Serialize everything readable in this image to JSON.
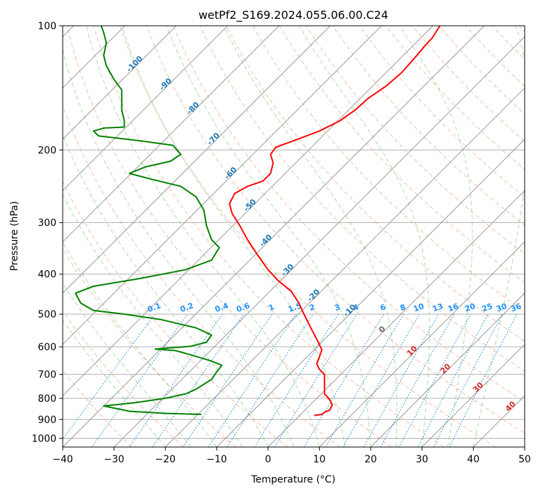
{
  "chart_data": {
    "type": "line",
    "title": "wetPf2_S169.2024.055.06.00.C24",
    "xlabel": "Temperature (°C)",
    "ylabel": "Pressure (hPa)",
    "xlim": [
      -40,
      50
    ],
    "ylim": [
      1050,
      100
    ],
    "y_scale": "log",
    "grid": true,
    "x_ticks": [
      -40,
      -30,
      -20,
      -10,
      0,
      10,
      20,
      30,
      40,
      50
    ],
    "y_ticks": [
      100,
      200,
      300,
      400,
      500,
      600,
      700,
      800,
      900,
      1000
    ],
    "colors": {
      "temperature": "#ff0000",
      "dewpoint": "#008000",
      "dry_adiabat": "#f4a582",
      "moist_adiabat": "#66bb66",
      "mixing_ratio": "#1e88e5",
      "isotherm": "#999999",
      "mixing_label": "#1e90ff",
      "isotherm_label_blue": "#1f77b4",
      "isotherm_label_red": "#d62728",
      "isotherm_label_zero": "#666666"
    },
    "series": [
      {
        "key": "temperature",
        "points": [
          [
            9.0,
            880
          ],
          [
            10.5,
            875
          ],
          [
            11.0,
            865
          ],
          [
            12.0,
            855
          ],
          [
            12.5,
            830
          ],
          [
            12.0,
            805
          ],
          [
            11.0,
            780
          ],
          [
            11.0,
            740
          ],
          [
            11.0,
            700
          ],
          [
            10.0,
            680
          ],
          [
            9.5,
            660
          ],
          [
            10.0,
            635
          ],
          [
            10.5,
            610
          ],
          [
            9.5,
            575
          ],
          [
            8.5,
            545
          ],
          [
            7.0,
            500
          ],
          [
            6.0,
            470
          ],
          [
            4.5,
            440
          ],
          [
            2.0,
            415
          ],
          [
            0.0,
            390
          ],
          [
            -2.0,
            360
          ],
          [
            -4.0,
            330
          ],
          [
            -5.5,
            305
          ],
          [
            -7.0,
            285
          ],
          [
            -7.5,
            270
          ],
          [
            -6.5,
            255
          ],
          [
            -4.0,
            245
          ],
          [
            -1.0,
            238
          ],
          [
            0.5,
            228
          ],
          [
            1.0,
            215
          ],
          [
            0.5,
            205
          ],
          [
            1.5,
            197
          ],
          [
            5.0,
            190
          ],
          [
            10.0,
            180
          ],
          [
            14.0,
            170
          ],
          [
            17.0,
            160
          ],
          [
            19.5,
            150
          ],
          [
            23.0,
            140
          ],
          [
            26.0,
            130
          ],
          [
            28.5,
            120
          ],
          [
            30.5,
            112
          ],
          [
            32.0,
            107
          ],
          [
            33.5,
            100
          ]
        ],
        "skewed": true
      },
      {
        "key": "dewpoint",
        "points": [
          [
            -13.0,
            875
          ],
          [
            -20.0,
            870
          ],
          [
            -27.0,
            860
          ],
          [
            -32.0,
            835
          ],
          [
            -26.0,
            820
          ],
          [
            -20.0,
            800
          ],
          [
            -16.0,
            780
          ],
          [
            -14.0,
            760
          ],
          [
            -11.0,
            720
          ],
          [
            -10.0,
            690
          ],
          [
            -9.0,
            665
          ],
          [
            -11.0,
            650
          ],
          [
            -15.0,
            628
          ],
          [
            -18.0,
            613
          ],
          [
            -22.0,
            608
          ],
          [
            -15.0,
            598
          ],
          [
            -12.0,
            585
          ],
          [
            -11.0,
            562
          ],
          [
            -14.0,
            540
          ],
          [
            -21.0,
            515
          ],
          [
            -28.0,
            500
          ],
          [
            -34.0,
            490
          ],
          [
            -36.5,
            470
          ],
          [
            -37.5,
            445
          ],
          [
            -34.0,
            428
          ],
          [
            -25.0,
            410
          ],
          [
            -16.0,
            390
          ],
          [
            -11.0,
            370
          ],
          [
            -9.5,
            345
          ],
          [
            -11.0,
            330
          ],
          [
            -12.0,
            305
          ],
          [
            -12.5,
            280
          ],
          [
            -14.0,
            260
          ],
          [
            -17.0,
            245
          ],
          [
            -23.0,
            235
          ],
          [
            -27.0,
            228
          ],
          [
            -24.0,
            220
          ],
          [
            -19.0,
            213
          ],
          [
            -17.0,
            205
          ],
          [
            -18.5,
            195
          ],
          [
            -25.0,
            190
          ],
          [
            -33.0,
            185
          ],
          [
            -34.0,
            180
          ],
          [
            -32.0,
            177
          ],
          [
            -28.0,
            176
          ],
          [
            -28.0,
            170
          ],
          [
            -28.5,
            160
          ],
          [
            -28.5,
            150
          ],
          [
            -28.5,
            143
          ],
          [
            -30.0,
            135
          ],
          [
            -31.5,
            125
          ],
          [
            -32.0,
            118
          ],
          [
            -31.5,
            110
          ],
          [
            -32.0,
            104
          ],
          [
            -32.5,
            100
          ]
        ],
        "skewed": true
      }
    ],
    "isotherm_labels": {
      "blue": [
        [
          "-100",
          -100,
          125
        ],
        [
          "-90",
          -90,
          140
        ],
        [
          "-80",
          -80,
          160
        ],
        [
          "-70",
          -70,
          190
        ],
        [
          "-60",
          -60,
          230
        ],
        [
          "-50",
          -50,
          275
        ],
        [
          "-40",
          -40,
          335
        ],
        [
          "-30",
          -30,
          395
        ],
        [
          "-20",
          -20,
          455
        ],
        [
          "-10",
          -10,
          495
        ]
      ],
      "zero": [
        [
          "0",
          0,
          550
        ]
      ],
      "red": [
        [
          "10",
          10,
          620
        ],
        [
          "20",
          20,
          685
        ],
        [
          "30",
          30,
          760
        ],
        [
          "40",
          40,
          845
        ]
      ]
    },
    "mixing_ratio_labels": [
      "0.1",
      "0.2",
      "0.4",
      "0.6",
      "1",
      "1.5",
      "2",
      "3",
      "4",
      "6",
      "8",
      "10",
      "13",
      "16",
      "20",
      "25",
      "30",
      "36"
    ],
    "mixing_ratio_values": [
      0.1,
      0.2,
      0.4,
      0.6,
      1,
      1.5,
      2,
      3,
      4,
      6,
      8,
      10,
      13,
      16,
      20,
      25,
      30,
      36
    ]
  }
}
